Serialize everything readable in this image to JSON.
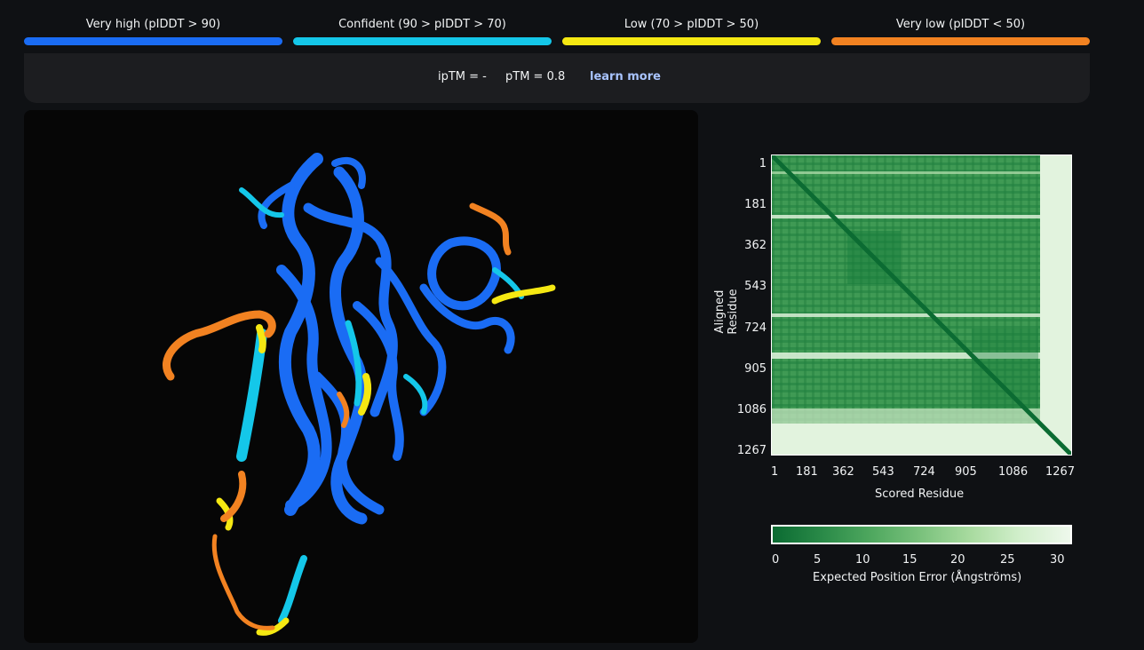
{
  "plddt_legend": [
    {
      "label": "Very high (pIDDT > 90)",
      "color": "#1a6cf4"
    },
    {
      "label": "Confident (90 > pIDDT > 70)",
      "color": "#14c7e9"
    },
    {
      "label": "Low (70 > pIDDT > 50)",
      "color": "#f5e812"
    },
    {
      "label": "Very low (pIDDT < 50)",
      "color": "#f28221"
    }
  ],
  "metrics": {
    "iptm": "ipTM = -",
    "ptm": "pTM = 0.8",
    "learn_more": "learn more"
  },
  "pae_plot": {
    "ylabel": "Aligned Residue",
    "xlabel": "Scored Residue",
    "y_ticks": [
      "1",
      "181",
      "362",
      "543",
      "724",
      "905",
      "1086",
      "1267"
    ],
    "x_ticks": [
      "1",
      "181",
      "362",
      "543",
      "724",
      "905",
      "1086",
      "1267"
    ],
    "colorbar_ticks": [
      "0",
      "5",
      "10",
      "15",
      "20",
      "25",
      "30"
    ],
    "colorbar_label": "Expected Position Error (Ångströms)",
    "colors": {
      "low_error": "#0b6b32",
      "high_error": "#eef8ec"
    }
  }
}
